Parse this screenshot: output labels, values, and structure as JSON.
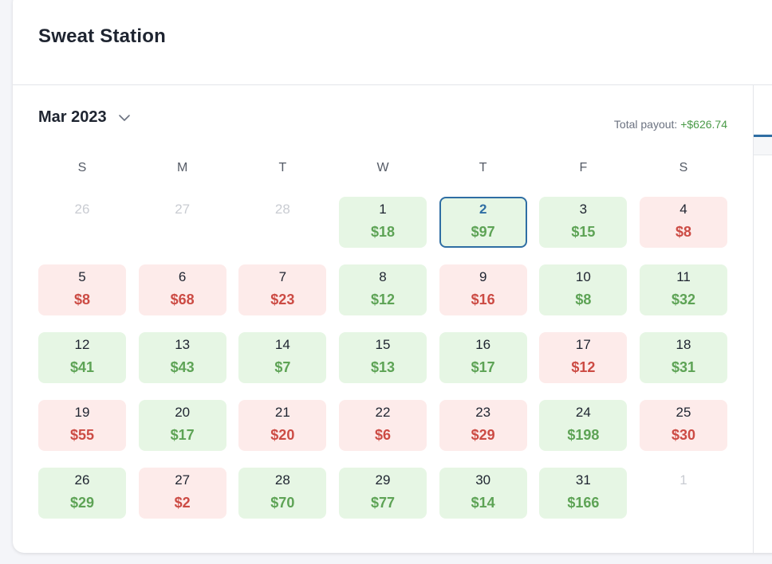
{
  "header": {
    "title": "Sweat Station"
  },
  "calendar": {
    "month_label": "Mar 2023",
    "payout_label": "Total payout:",
    "payout_value": "+$626.74",
    "weekdays": [
      "S",
      "M",
      "T",
      "W",
      "T",
      "F",
      "S"
    ],
    "colors": {
      "positive_bg": "#e6f6e4",
      "positive_text": "#5da355",
      "negative_bg": "#fdebea",
      "negative_text": "#cc4b44",
      "accent": "#2f6ea3"
    },
    "weeks": [
      [
        {
          "day": "26",
          "amount": "",
          "type": "muted"
        },
        {
          "day": "27",
          "amount": "",
          "type": "muted"
        },
        {
          "day": "28",
          "amount": "",
          "type": "muted"
        },
        {
          "day": "1",
          "amount": "$18",
          "type": "pos"
        },
        {
          "day": "2",
          "amount": "$97",
          "type": "pos",
          "today": true
        },
        {
          "day": "3",
          "amount": "$15",
          "type": "pos"
        },
        {
          "day": "4",
          "amount": "$8",
          "type": "neg"
        }
      ],
      [
        {
          "day": "5",
          "amount": "$8",
          "type": "neg"
        },
        {
          "day": "6",
          "amount": "$68",
          "type": "neg"
        },
        {
          "day": "7",
          "amount": "$23",
          "type": "neg"
        },
        {
          "day": "8",
          "amount": "$12",
          "type": "pos"
        },
        {
          "day": "9",
          "amount": "$16",
          "type": "neg"
        },
        {
          "day": "10",
          "amount": "$8",
          "type": "pos"
        },
        {
          "day": "11",
          "amount": "$32",
          "type": "pos"
        }
      ],
      [
        {
          "day": "12",
          "amount": "$41",
          "type": "pos"
        },
        {
          "day": "13",
          "amount": "$43",
          "type": "pos"
        },
        {
          "day": "14",
          "amount": "$7",
          "type": "pos"
        },
        {
          "day": "15",
          "amount": "$13",
          "type": "pos"
        },
        {
          "day": "16",
          "amount": "$17",
          "type": "pos"
        },
        {
          "day": "17",
          "amount": "$12",
          "type": "neg"
        },
        {
          "day": "18",
          "amount": "$31",
          "type": "pos"
        }
      ],
      [
        {
          "day": "19",
          "amount": "$55",
          "type": "neg"
        },
        {
          "day": "20",
          "amount": "$17",
          "type": "pos"
        },
        {
          "day": "21",
          "amount": "$20",
          "type": "neg"
        },
        {
          "day": "22",
          "amount": "$6",
          "type": "neg"
        },
        {
          "day": "23",
          "amount": "$29",
          "type": "neg"
        },
        {
          "day": "24",
          "amount": "$198",
          "type": "pos"
        },
        {
          "day": "25",
          "amount": "$30",
          "type": "neg"
        }
      ],
      [
        {
          "day": "26",
          "amount": "$29",
          "type": "pos"
        },
        {
          "day": "27",
          "amount": "$2",
          "type": "neg"
        },
        {
          "day": "28",
          "amount": "$70",
          "type": "pos"
        },
        {
          "day": "29",
          "amount": "$77",
          "type": "pos"
        },
        {
          "day": "30",
          "amount": "$14",
          "type": "pos"
        },
        {
          "day": "31",
          "amount": "$166",
          "type": "pos"
        },
        {
          "day": "1",
          "amount": "",
          "type": "muted"
        }
      ]
    ]
  }
}
